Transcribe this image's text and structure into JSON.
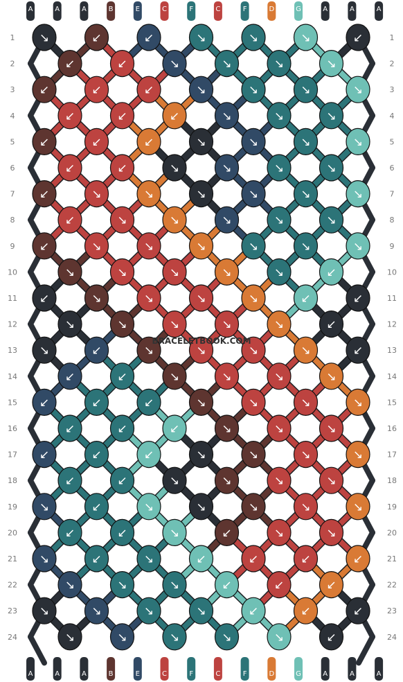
{
  "pattern": {
    "top_strands": [
      "A",
      "A",
      "A",
      "B",
      "E",
      "C",
      "F",
      "C",
      "F",
      "D",
      "G",
      "A",
      "A",
      "A"
    ],
    "bottom_strands": [
      "A",
      "A",
      "A",
      "B",
      "E",
      "C",
      "F",
      "C",
      "F",
      "D",
      "G",
      "A",
      "A",
      "A"
    ],
    "strand_colors": {
      "A": "#2a2f36",
      "B": "#5e3530",
      "C": "#bd4340",
      "D": "#d97a35",
      "E": "#314a66",
      "F": "#2c7478",
      "G": "#6fc0b5"
    },
    "row_labels": [
      "1",
      "2",
      "3",
      "4",
      "5",
      "6",
      "7",
      "8",
      "9",
      "10",
      "11",
      "12",
      "13",
      "14",
      "15",
      "16",
      "17",
      "18",
      "19",
      "20",
      "21",
      "22",
      "23",
      "24"
    ],
    "knot_directions": {
      "SW": "↙",
      "SE": "↘"
    },
    "knots": [
      [
        "A",
        "B",
        "E",
        "F",
        "F",
        "G",
        "A"
      ],
      [
        "B",
        "C",
        "E",
        "F",
        "F",
        "G"
      ],
      [
        "B",
        "C",
        "C",
        "E",
        "F",
        "F",
        "G"
      ],
      [
        "C",
        "C",
        "D",
        "E",
        "F",
        "F"
      ],
      [
        "B",
        "C",
        "D",
        "A",
        "E",
        "F",
        "G"
      ],
      [
        "C",
        "C",
        "A",
        "E",
        "F",
        "F"
      ],
      [
        "B",
        "C",
        "D",
        "A",
        "E",
        "F",
        "G"
      ],
      [
        "C",
        "C",
        "D",
        "E",
        "F",
        "F"
      ],
      [
        "B",
        "C",
        "C",
        "D",
        "F",
        "F",
        "G"
      ],
      [
        "B",
        "C",
        "C",
        "D",
        "F",
        "G"
      ],
      [
        "A",
        "B",
        "C",
        "C",
        "D",
        "G",
        "A"
      ],
      [
        "A",
        "B",
        "C",
        "C",
        "D",
        "A"
      ],
      [
        "A",
        "E",
        "B",
        "C",
        "C",
        "D",
        "A"
      ],
      [
        "E",
        "F",
        "B",
        "C",
        "C",
        "D"
      ],
      [
        "E",
        "F",
        "F",
        "B",
        "C",
        "C",
        "D"
      ],
      [
        "F",
        "F",
        "G",
        "B",
        "C",
        "C"
      ],
      [
        "E",
        "F",
        "G",
        "A",
        "B",
        "C",
        "D"
      ],
      [
        "F",
        "F",
        "A",
        "B",
        "C",
        "C"
      ],
      [
        "E",
        "F",
        "G",
        "A",
        "B",
        "C",
        "D"
      ],
      [
        "F",
        "F",
        "G",
        "B",
        "C",
        "C"
      ],
      [
        "E",
        "F",
        "F",
        "G",
        "C",
        "C",
        "D"
      ],
      [
        "E",
        "F",
        "F",
        "G",
        "C",
        "D"
      ],
      [
        "A",
        "E",
        "F",
        "F",
        "G",
        "D",
        "A"
      ],
      [
        "A",
        "E",
        "F",
        "F",
        "G",
        "A"
      ]
    ],
    "directions": [
      [
        "SE",
        "SW",
        "SW",
        "SE",
        "SE",
        "SE",
        "SW"
      ],
      [
        "SW",
        "SW",
        "SE",
        "SE",
        "SE",
        "SE"
      ],
      [
        "SW",
        "SW",
        "SW",
        "SE",
        "SE",
        "SE",
        "SE"
      ],
      [
        "SW",
        "SW",
        "SW",
        "SE",
        "SE",
        "SE"
      ],
      [
        "SW",
        "SW",
        "SW",
        "SE",
        "SE",
        "SE",
        "SE"
      ],
      [
        "SW",
        "SW",
        "SE",
        "SE",
        "SE",
        "SE"
      ],
      [
        "SW",
        "SE",
        "SE",
        "SE",
        "SE",
        "SE",
        "SE"
      ],
      [
        "SW",
        "SE",
        "SE",
        "SE",
        "SE",
        "SE"
      ],
      [
        "SW",
        "SE",
        "SE",
        "SE",
        "SE",
        "SE",
        "SE"
      ],
      [
        "SE",
        "SE",
        "SE",
        "SE",
        "SE",
        "SW"
      ],
      [
        "SW",
        "SE",
        "SE",
        "SE",
        "SE",
        "SW",
        "SW"
      ],
      [
        "SE",
        "SE",
        "SE",
        "SE",
        "SE",
        "SW"
      ],
      [
        "SE",
        "SW",
        "SE",
        "SE",
        "SE",
        "SE",
        "SW"
      ],
      [
        "SW",
        "SW",
        "SE",
        "SE",
        "SE",
        "SE"
      ],
      [
        "SW",
        "SW",
        "SW",
        "SE",
        "SE",
        "SE",
        "SE"
      ],
      [
        "SW",
        "SW",
        "SW",
        "SE",
        "SE",
        "SE"
      ],
      [
        "SW",
        "SW",
        "SW",
        "SE",
        "SE",
        "SE",
        "SE"
      ],
      [
        "SW",
        "SW",
        "SE",
        "SE",
        "SE",
        "SE"
      ],
      [
        "SE",
        "SW",
        "SE",
        "SE",
        "SE",
        "SE",
        "SE"
      ],
      [
        "SW",
        "SW",
        "SE",
        "SW",
        "SE",
        "SE"
      ],
      [
        "SE",
        "SW",
        "SE",
        "SW",
        "SW",
        "SW",
        "SW"
      ],
      [
        "SE",
        "SE",
        "SE",
        "SW",
        "SW",
        "SW"
      ],
      [
        "SE",
        "SE",
        "SE",
        "SE",
        "SW",
        "SW",
        "SW"
      ],
      [
        "SE",
        "SE",
        "SE",
        "SE",
        "SE",
        "SW"
      ]
    ]
  },
  "watermark": "BRACELETBOOK.COM"
}
